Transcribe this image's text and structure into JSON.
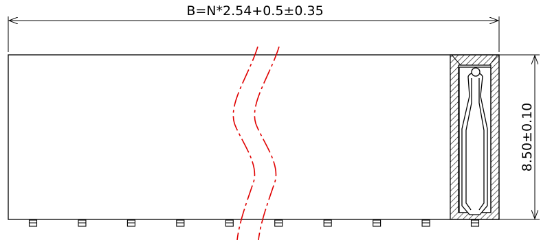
{
  "drawing": {
    "width_dimension": "B=N*2.54+0.5±0.35",
    "height_dimension": "8.50±0.10",
    "pin_count_shown": 10,
    "colors": {
      "outline": "#000000",
      "break_line": "#e00000",
      "background": "#ffffff"
    }
  }
}
